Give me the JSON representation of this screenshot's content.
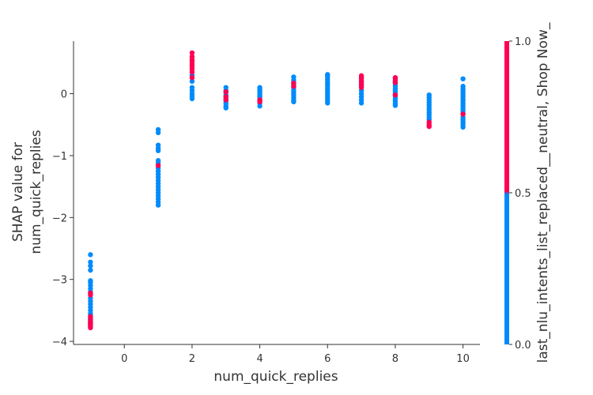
{
  "chart_data": {
    "type": "scatter",
    "title": "",
    "xlabel": "num_quick_replies",
    "ylabel": [
      "SHAP value for",
      "num_quick_replies"
    ],
    "xlim": [
      -1.5,
      10.5
    ],
    "ylim": [
      -4.05,
      0.85
    ],
    "xticks": [
      0,
      2,
      4,
      6,
      8,
      10
    ],
    "yticks": [
      0,
      -1,
      -2,
      -3,
      -4
    ],
    "xtick_labels": [
      "0",
      "2",
      "4",
      "6",
      "8",
      "10"
    ],
    "ytick_labels": [
      "0",
      "−1",
      "−2",
      "−3",
      "−4"
    ],
    "grid": false,
    "colorbar": {
      "label": "last_nlu_intents_list_replaced__neutral, Shop Now_",
      "min": 0.0,
      "max": 1.0,
      "ticks": [
        0.0,
        0.5,
        1.0
      ],
      "tick_labels": [
        "0.0",
        "0.5",
        "1.0"
      ],
      "low_color": "#008bfb",
      "high_color": "#ff0052"
    },
    "groups": [
      {
        "x": -1,
        "blue": [
          -2.6,
          -2.72,
          -2.78,
          -2.85,
          -3.02,
          -3.05,
          -3.1,
          -3.15,
          -3.2,
          -3.3,
          -3.35,
          -3.4,
          -3.45,
          -3.5,
          -3.55,
          -3.58,
          -3.62,
          -3.65,
          -3.68,
          -3.72
        ],
        "red": [
          -3.22,
          -3.25,
          -3.6,
          -3.64,
          -3.68,
          -3.7,
          -3.72,
          -3.74,
          -3.76,
          -3.78
        ]
      },
      {
        "x": 1,
        "blue": [
          -0.58,
          -0.63,
          -0.83,
          -0.88,
          -0.92,
          -1.08,
          -1.12,
          -1.2,
          -1.25,
          -1.3,
          -1.35,
          -1.4,
          -1.45,
          -1.5,
          -1.55,
          -1.6,
          -1.65,
          -1.7,
          -1.75,
          -1.8
        ],
        "red": [
          -1.16
        ]
      },
      {
        "x": 2,
        "blue": [
          0.3,
          0.2,
          0.1,
          0.05,
          0.0,
          -0.04,
          -0.08
        ],
        "red": [
          0.66,
          0.6,
          0.55,
          0.52,
          0.48,
          0.44,
          0.4,
          0.35,
          0.26
        ]
      },
      {
        "x": 3,
        "blue": [
          0.1,
          0.05,
          0.02,
          -0.02,
          -0.05,
          -0.08,
          -0.12,
          -0.16,
          -0.2,
          -0.23
        ],
        "red": [
          0.03,
          -0.05,
          -0.1
        ]
      },
      {
        "x": 4,
        "blue": [
          0.1,
          0.07,
          0.04,
          0.01,
          -0.02,
          -0.05,
          -0.08,
          -0.11,
          -0.15,
          -0.2
        ],
        "red": [
          -0.1,
          -0.13
        ]
      },
      {
        "x": 5,
        "blue": [
          0.27,
          0.22,
          0.18,
          0.14,
          0.1,
          0.06,
          0.02,
          -0.02,
          -0.06,
          -0.1,
          -0.13
        ],
        "red": [
          0.17,
          0.12
        ]
      },
      {
        "x": 6,
        "blue": [
          0.31,
          0.28,
          0.24,
          0.2,
          0.16,
          0.12,
          0.08,
          0.04,
          0.0,
          -0.04,
          -0.08,
          -0.12,
          -0.15
        ],
        "red": []
      },
      {
        "x": 7,
        "blue": [
          0.25,
          0.2,
          0.15,
          0.1,
          0.05,
          0.0,
          -0.05,
          -0.1,
          -0.15
        ],
        "red": [
          0.29,
          0.26,
          0.22,
          0.18,
          0.14,
          0.1
        ]
      },
      {
        "x": 8,
        "blue": [
          0.25,
          0.2,
          0.16,
          0.12,
          0.08,
          0.04,
          0.0,
          -0.04,
          -0.08,
          -0.12,
          -0.16,
          -0.19
        ],
        "red": [
          0.26,
          0.22,
          0.18,
          -0.02
        ]
      },
      {
        "x": 9,
        "blue": [
          -0.02,
          -0.06,
          -0.1,
          -0.14,
          -0.18,
          -0.22,
          -0.26,
          -0.3,
          -0.34,
          -0.38,
          -0.42
        ],
        "red": [
          -0.46,
          -0.5,
          -0.53
        ]
      },
      {
        "x": 10,
        "blue": [
          0.24,
          0.12,
          0.08,
          0.04,
          0.0,
          -0.04,
          -0.08,
          -0.12,
          -0.16,
          -0.2,
          -0.24,
          -0.28,
          -0.32,
          -0.38,
          -0.42,
          -0.46,
          -0.5,
          -0.54
        ],
        "red": [
          -0.33
        ]
      }
    ]
  }
}
